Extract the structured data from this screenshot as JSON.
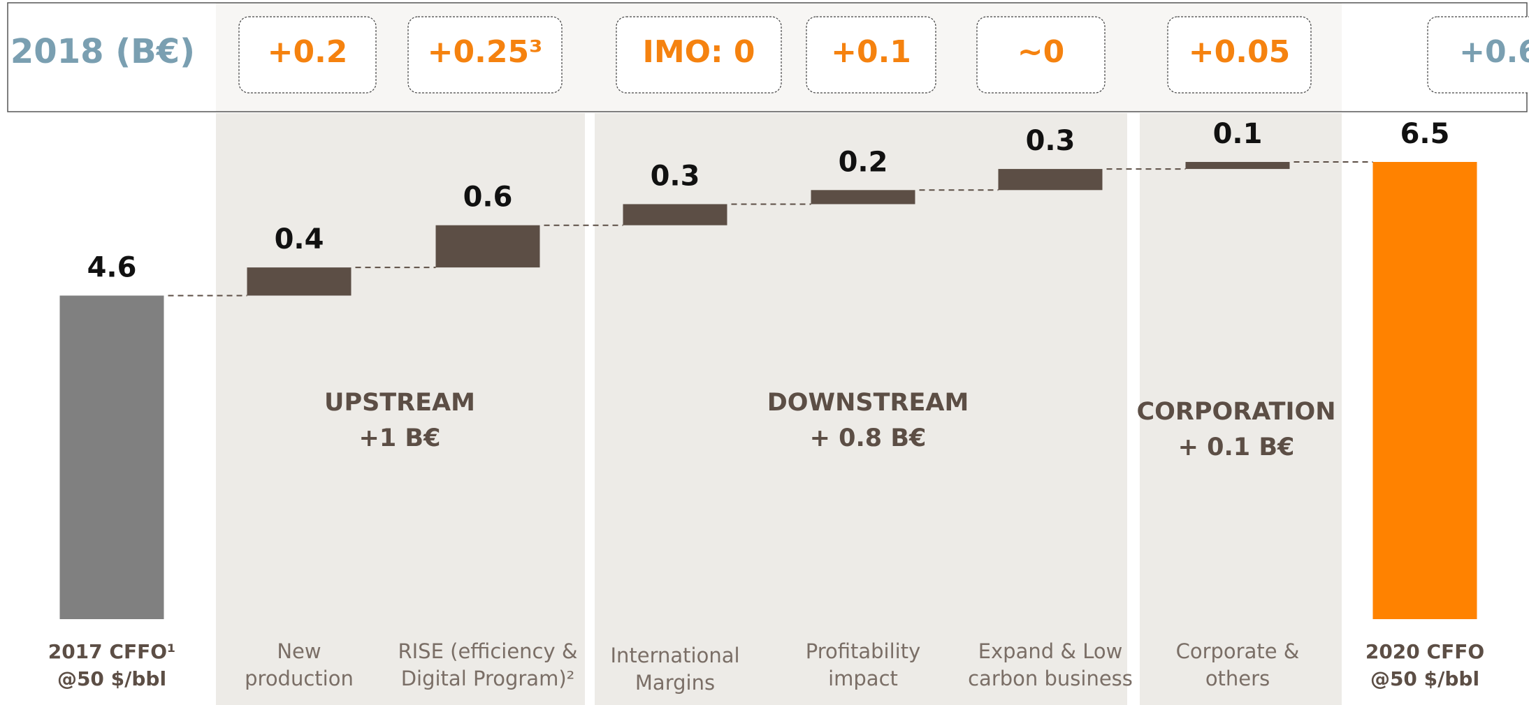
{
  "chart_data": {
    "type": "waterfall",
    "categories": [
      [
        "2017 CFFO¹",
        "@50 $/bbl"
      ],
      [
        "New",
        "production"
      ],
      [
        "RISE (efficiency &",
        "Digital Program)²"
      ],
      [
        "International",
        "Margins"
      ],
      [
        "Profitability",
        "impact"
      ],
      [
        "Expand & Low",
        "carbon business"
      ],
      [
        "Corporate &",
        "others"
      ],
      [
        "2020 CFFO",
        "@50 $/bbl"
      ]
    ],
    "values": [
      4.6,
      0.4,
      0.6,
      0.3,
      0.2,
      0.3,
      0.1,
      6.5
    ],
    "measure": [
      "absolute",
      "relative",
      "relative",
      "relative",
      "relative",
      "relative",
      "relative",
      "total"
    ],
    "colors": [
      "#808080",
      "#5c4e45",
      "#5c4e45",
      "#5c4e45",
      "#5c4e45",
      "#5c4e45",
      "#5c4e45",
      "#ff8200"
    ],
    "groups": [
      {
        "name": "UPSTREAM",
        "subtitle": "+1 B€"
      },
      {
        "name": "DOWNSTREAM",
        "subtitle": "+ 0.8 B€"
      },
      {
        "name": "CORPORATION",
        "subtitle": "+ 0.1 B€"
      }
    ],
    "header": {
      "label": "2018 (B€)",
      "values": [
        "+0.2",
        "+0.25³",
        "IMO: 0",
        "+0.1",
        "~0",
        "+0.05",
        "+0.6"
      ]
    }
  }
}
